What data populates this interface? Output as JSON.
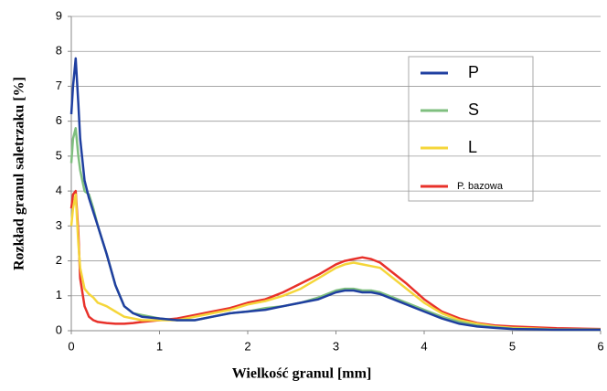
{
  "chart_data": {
    "type": "line",
    "x_label": "Wielkość granul [mm]",
    "y_label": "Rozkład granul saletrzaku [%]",
    "x": [
      0,
      0.02,
      0.05,
      0.08,
      0.1,
      0.15,
      0.2,
      0.25,
      0.3,
      0.4,
      0.5,
      0.6,
      0.7,
      0.8,
      1.0,
      1.2,
      1.4,
      1.6,
      1.8,
      2.0,
      2.2,
      2.4,
      2.6,
      2.8,
      3.0,
      3.1,
      3.2,
      3.3,
      3.4,
      3.5,
      3.6,
      3.8,
      4.0,
      4.2,
      4.4,
      4.6,
      4.8,
      5.0,
      5.5,
      6.0
    ],
    "series": [
      {
        "name": "P",
        "color": "#1f3fa0",
        "values": [
          6.2,
          7.0,
          7.8,
          6.5,
          5.5,
          4.3,
          3.8,
          3.4,
          3.0,
          2.2,
          1.3,
          0.7,
          0.5,
          0.4,
          0.35,
          0.3,
          0.3,
          0.4,
          0.5,
          0.55,
          0.6,
          0.7,
          0.8,
          0.9,
          1.1,
          1.15,
          1.15,
          1.1,
          1.1,
          1.05,
          0.95,
          0.75,
          0.55,
          0.35,
          0.2,
          0.12,
          0.08,
          0.05,
          0.03,
          0.03
        ]
      },
      {
        "name": "S",
        "color": "#7fbf7f",
        "values": [
          4.8,
          5.5,
          5.8,
          5.0,
          4.6,
          4.0,
          3.9,
          3.5,
          3.0,
          2.2,
          1.3,
          0.7,
          0.5,
          0.45,
          0.35,
          0.3,
          0.3,
          0.4,
          0.5,
          0.55,
          0.65,
          0.7,
          0.8,
          0.95,
          1.15,
          1.2,
          1.2,
          1.15,
          1.15,
          1.1,
          1.0,
          0.8,
          0.6,
          0.4,
          0.25,
          0.15,
          0.1,
          0.06,
          0.03,
          0.03
        ]
      },
      {
        "name": "L",
        "color": "#f5d63a",
        "values": [
          3.0,
          3.5,
          3.9,
          2.5,
          1.8,
          1.2,
          1.05,
          0.95,
          0.8,
          0.7,
          0.55,
          0.4,
          0.35,
          0.3,
          0.3,
          0.3,
          0.4,
          0.5,
          0.6,
          0.75,
          0.85,
          1.0,
          1.2,
          1.5,
          1.8,
          1.9,
          1.95,
          1.9,
          1.85,
          1.8,
          1.6,
          1.2,
          0.8,
          0.5,
          0.3,
          0.2,
          0.12,
          0.08,
          0.04,
          0.04
        ]
      },
      {
        "name": "P. bazowa",
        "color": "#e8312a",
        "values": [
          3.5,
          3.9,
          4.0,
          2.8,
          1.5,
          0.7,
          0.4,
          0.3,
          0.25,
          0.22,
          0.2,
          0.2,
          0.22,
          0.25,
          0.3,
          0.35,
          0.45,
          0.55,
          0.65,
          0.8,
          0.9,
          1.1,
          1.35,
          1.6,
          1.9,
          2.0,
          2.05,
          2.1,
          2.05,
          1.95,
          1.75,
          1.35,
          0.9,
          0.55,
          0.35,
          0.22,
          0.15,
          0.12,
          0.07,
          0.05
        ]
      }
    ],
    "xlim": [
      0,
      6
    ],
    "xticks": [
      0,
      1,
      2,
      3,
      4,
      5,
      6
    ],
    "ylim": [
      0,
      9
    ],
    "yticks": [
      0,
      1,
      2,
      3,
      4,
      5,
      6,
      7,
      8,
      9
    ],
    "grid": true
  }
}
